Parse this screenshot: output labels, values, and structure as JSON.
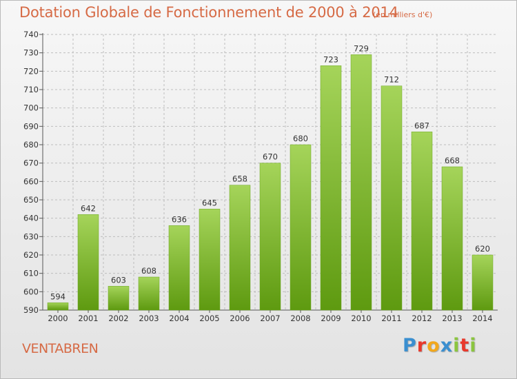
{
  "header": {
    "title": "Dotation Globale de Fonctionnement de 2000 à 2014",
    "subtitle": "(en milliers d'€)"
  },
  "footer": {
    "commune": "VENTABREN",
    "logo": "Proxiti",
    "logo_colors": [
      "#3a8fd0",
      "#e8392c",
      "#f2a81d",
      "#3a8fd0",
      "#8bc53f",
      "#e8392c",
      "#8bc53f"
    ]
  },
  "colors": {
    "title": "#d66a45",
    "bar_light": "#a5d45a",
    "bar_dark": "#5e9a10",
    "grid": "#bdbdbd"
  },
  "chart_data": {
    "type": "bar",
    "title": "Dotation Globale de Fonctionnement de 2000 à 2014",
    "subtitle": "(en milliers d'€)",
    "xlabel": "",
    "ylabel": "",
    "categories": [
      "2000",
      "2001",
      "2002",
      "2003",
      "2004",
      "2005",
      "2006",
      "2007",
      "2008",
      "2009",
      "2010",
      "2011",
      "2012",
      "2013",
      "2014"
    ],
    "values": [
      594,
      642,
      603,
      608,
      636,
      645,
      658,
      670,
      680,
      723,
      729,
      712,
      687,
      668,
      620
    ],
    "ylim": [
      590,
      740
    ],
    "yticks": [
      590,
      600,
      610,
      620,
      630,
      640,
      650,
      660,
      670,
      680,
      690,
      700,
      710,
      720,
      730,
      740
    ],
    "grid": true,
    "data_labels": true
  }
}
